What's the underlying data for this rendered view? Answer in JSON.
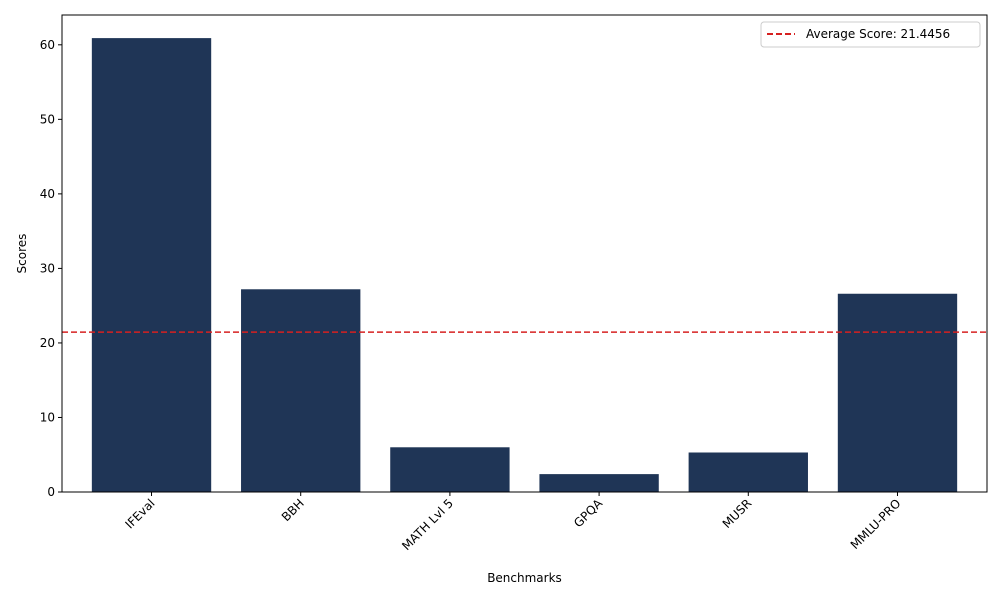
{
  "chart_data": {
    "type": "bar",
    "title": "",
    "xlabel": "Benchmarks",
    "ylabel": "Scores",
    "categories": [
      "IFEval",
      "BBH",
      "MATH Lvl 5",
      "GPQA",
      "MUSR",
      "MMLU-PRO"
    ],
    "values": [
      60.9,
      27.2,
      6.0,
      2.4,
      5.3,
      26.6
    ],
    "ylim": [
      0,
      64
    ],
    "yticks": [
      "0",
      "10",
      "20",
      "30",
      "40",
      "50",
      "60"
    ],
    "bar_color": "#1f3556",
    "grid": false,
    "average_line": {
      "value": 21.4456,
      "label": "Average Score: 21.4456",
      "color": "#d62020",
      "style": "dashed"
    },
    "legend_position": "top-right"
  }
}
